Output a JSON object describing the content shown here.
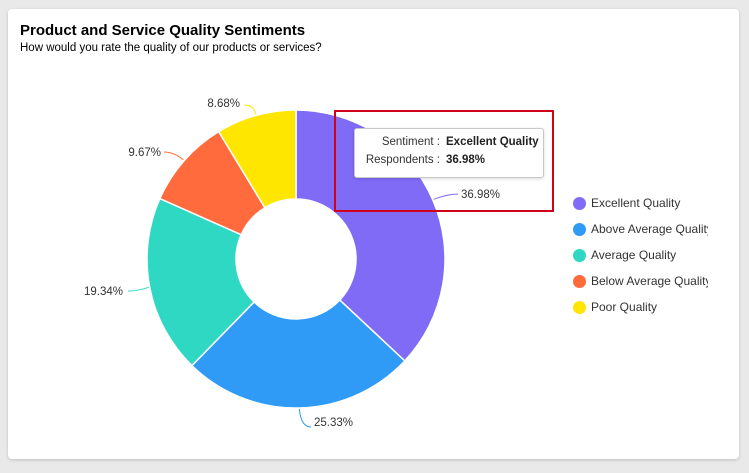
{
  "header": {
    "title": "Product and Service Quality Sentiments",
    "subtitle": "How would you rate the quality of our products or services?"
  },
  "tooltip": {
    "sentiment_label": "Sentiment :",
    "sentiment_value": "Excellent Quality",
    "respondents_label": "Respondents :",
    "respondents_value": "36.98%"
  },
  "chart_data": {
    "type": "pie",
    "donut": true,
    "legend_position": "right",
    "categories": [
      "Excellent Quality",
      "Above Average Quality",
      "Average Quality",
      "Below Average Quality",
      "Poor Quality"
    ],
    "values": [
      36.98,
      25.33,
      19.34,
      9.67,
      8.68
    ],
    "data_labels": [
      "36.98%",
      "25.33%",
      "19.34%",
      "9.67%",
      "8.68%"
    ],
    "colors": [
      "#7f6bf6",
      "#2f9bf7",
      "#2ed8c3",
      "#ff6b3d",
      "#ffe600"
    ]
  }
}
